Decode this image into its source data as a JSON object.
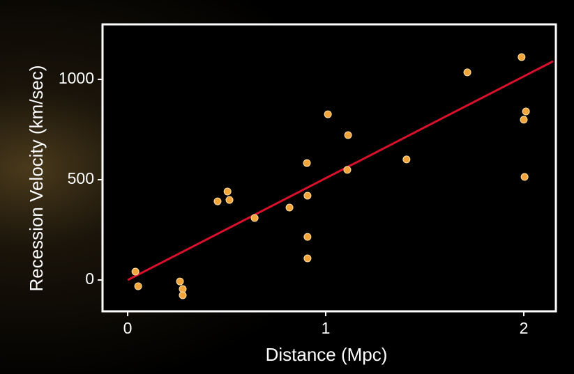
{
  "chart_data": {
    "type": "scatter",
    "x_label": "Distance (Mpc)",
    "y_label": "Recession Velocity (km/sec)",
    "x": [
      0.039,
      0.053,
      0.264,
      0.278,
      0.278,
      0.454,
      0.504,
      0.514,
      0.641,
      0.817,
      0.905,
      0.908,
      0.908,
      0.908,
      1.011,
      1.113,
      1.109,
      1.408,
      1.715,
      1.989,
      2.011,
      2.0,
      2.004
    ],
    "values": [
      42,
      -31,
      -7,
      -45,
      -76,
      392,
      441,
      399,
      309,
      361,
      583,
      420,
      215,
      108,
      826,
      722,
      549,
      601,
      1035,
      1111,
      840,
      799,
      514
    ],
    "color": "#f2a53a",
    "trend_line": {
      "x": [
        0,
        2.148
      ],
      "values": [
        0,
        1090
      ],
      "color": "#d8102c"
    },
    "xlim": [
      -0.127,
      2.162
    ],
    "ylim": [
      -156,
      1274
    ],
    "xticks": [
      0,
      1,
      2
    ],
    "yticks": [
      0,
      500,
      1000
    ]
  }
}
